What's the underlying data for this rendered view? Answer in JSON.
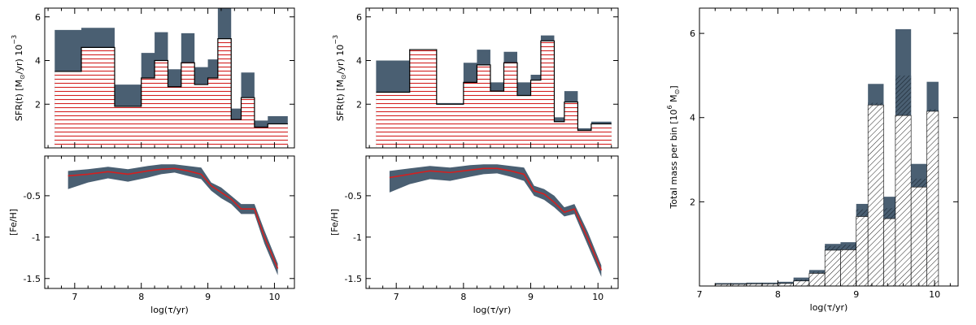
{
  "colors": {
    "envelope": "#4a5f72",
    "hatch_red": "#d42020",
    "hatch_black": "#222222",
    "line": "#000000"
  },
  "chart_data": [
    {
      "panel": "sfr-left",
      "type": "area",
      "ylabel_main": "SFR(t)",
      "ylabel_unit": "[M",
      "ylabel_sub": "⊙",
      "ylabel_tail": "/yr) 10",
      "ylabel_sup": "−3",
      "ylim": [
        0,
        6.4
      ],
      "xlim": [
        6.55,
        10.3
      ],
      "yticks": [
        "2",
        "4",
        "6"
      ],
      "ytick_values": [
        2,
        4,
        6
      ],
      "edges": [
        6.7,
        7.1,
        7.6,
        8.0,
        8.2,
        8.4,
        8.6,
        8.8,
        9.0,
        9.15,
        9.35,
        9.5,
        9.7,
        9.9,
        10.05,
        10.2
      ],
      "upper": [
        5.4,
        5.5,
        2.9,
        4.35,
        5.3,
        3.6,
        5.25,
        3.7,
        4.05,
        6.4,
        1.8,
        3.45,
        1.25,
        1.45,
        1.45
      ],
      "median": [
        3.5,
        4.6,
        1.9,
        3.2,
        4.0,
        2.8,
        3.9,
        2.9,
        3.2,
        5.0,
        1.3,
        2.3,
        0.95,
        1.1,
        1.1
      ],
      "lower": [
        0.9,
        2.2,
        1.1,
        2.0,
        3.5,
        2.6,
        3.5,
        2.6,
        2.8,
        4.5,
        0.9,
        1.8,
        0.85,
        0.9,
        0.9
      ]
    },
    {
      "panel": "feh-left",
      "type": "line",
      "ylabel": "[Fe/H]",
      "xlabel": "log(τ/yr)",
      "ylim": [
        -1.62,
        -0.02
      ],
      "xlim": [
        6.55,
        10.3
      ],
      "xticks": [
        "7",
        "8",
        "9",
        "10"
      ],
      "xtick_values": [
        7,
        8,
        9,
        10
      ],
      "yticks": [
        "-0.5",
        "-1",
        "-1.5"
      ],
      "ytick_values": [
        -0.5,
        -1,
        -1.5
      ],
      "x": [
        6.9,
        7.2,
        7.5,
        7.8,
        8.1,
        8.3,
        8.5,
        8.7,
        8.9,
        9.05,
        9.2,
        9.35,
        9.5,
        9.7,
        9.85,
        10.05
      ],
      "median": [
        -0.26,
        -0.24,
        -0.21,
        -0.24,
        -0.2,
        -0.18,
        -0.17,
        -0.2,
        -0.24,
        -0.38,
        -0.46,
        -0.54,
        -0.66,
        -0.66,
        -1.0,
        -1.38
      ],
      "upper": [
        -0.2,
        -0.18,
        -0.15,
        -0.18,
        -0.14,
        -0.12,
        -0.12,
        -0.14,
        -0.16,
        -0.34,
        -0.4,
        -0.5,
        -0.6,
        -0.6,
        -0.92,
        -1.32
      ],
      "lower": [
        -0.42,
        -0.34,
        -0.29,
        -0.33,
        -0.28,
        -0.24,
        -0.22,
        -0.26,
        -0.3,
        -0.44,
        -0.53,
        -0.6,
        -0.72,
        -0.72,
        -1.08,
        -1.46
      ]
    },
    {
      "panel": "sfr-middle",
      "type": "area",
      "ylabel_main": "SFR(t)",
      "ylabel_unit": "[M",
      "ylabel_sub": "⊙",
      "ylabel_tail": "/yr) 10",
      "ylabel_sup": "−3",
      "ylim": [
        0,
        6.4
      ],
      "xlim": [
        6.55,
        10.3
      ],
      "yticks": [
        "2",
        "4",
        "6"
      ],
      "ytick_values": [
        2,
        4,
        6
      ],
      "edges": [
        6.7,
        7.2,
        7.6,
        8.0,
        8.2,
        8.4,
        8.6,
        8.8,
        9.0,
        9.15,
        9.35,
        9.5,
        9.7,
        9.9,
        10.05,
        10.2
      ],
      "upper": [
        4.0,
        4.5,
        2.05,
        3.9,
        4.5,
        3.0,
        4.4,
        3.0,
        3.35,
        5.15,
        1.4,
        2.6,
        0.9,
        1.2,
        1.2
      ],
      "median": [
        2.55,
        4.5,
        2.0,
        3.0,
        3.8,
        2.6,
        3.9,
        2.4,
        3.1,
        4.9,
        1.2,
        2.1,
        0.8,
        1.1,
        1.1
      ],
      "lower": [
        1.45,
        2.4,
        1.3,
        2.3,
        3.45,
        2.35,
        3.5,
        2.35,
        2.85,
        4.6,
        1.05,
        1.75,
        0.75,
        1.0,
        1.0
      ]
    },
    {
      "panel": "feh-middle",
      "type": "line",
      "ylabel": "[Fe/H]",
      "xlabel": "log(τ/yr)",
      "ylim": [
        -1.62,
        -0.02
      ],
      "xlim": [
        6.55,
        10.3
      ],
      "xticks": [
        "7",
        "8",
        "9",
        "10"
      ],
      "xtick_values": [
        7,
        8,
        9,
        10
      ],
      "yticks": [
        "-0.5",
        "-1",
        "-1.5"
      ],
      "ytick_values": [
        -0.5,
        -1,
        -1.5
      ],
      "x": [
        6.9,
        7.2,
        7.5,
        7.8,
        8.1,
        8.3,
        8.5,
        8.7,
        8.9,
        9.05,
        9.2,
        9.35,
        9.5,
        9.65,
        9.85,
        10.05
      ],
      "median": [
        -0.28,
        -0.24,
        -0.2,
        -0.22,
        -0.19,
        -0.17,
        -0.17,
        -0.2,
        -0.24,
        -0.44,
        -0.48,
        -0.58,
        -0.7,
        -0.66,
        -1.02,
        -1.4
      ],
      "upper": [
        -0.2,
        -0.17,
        -0.14,
        -0.16,
        -0.13,
        -0.12,
        -0.12,
        -0.14,
        -0.16,
        -0.38,
        -0.42,
        -0.5,
        -0.64,
        -0.6,
        -0.94,
        -1.34
      ],
      "lower": [
        -0.46,
        -0.36,
        -0.3,
        -0.32,
        -0.27,
        -0.24,
        -0.23,
        -0.27,
        -0.32,
        -0.5,
        -0.55,
        -0.64,
        -0.75,
        -0.72,
        -1.1,
        -1.48
      ]
    },
    {
      "panel": "mass-right",
      "type": "bar",
      "ylabel_main": "Total mass per bin [10",
      "ylabel_sup": "6",
      "ylabel_tail": " M",
      "ylabel_sub": "⊙",
      "ylabel_end": "]",
      "xlabel": "log(τ/yr)",
      "ylim": [
        0,
        6.6
      ],
      "xlim": [
        7.0,
        10.3
      ],
      "xticks": [
        "7",
        "8",
        "9",
        "10"
      ],
      "xtick_values": [
        7,
        8,
        9,
        10
      ],
      "yticks": [
        "2",
        "4",
        "6"
      ],
      "ytick_values": [
        2,
        4,
        6
      ],
      "edges": [
        7.2,
        7.6,
        8.0,
        8.2,
        8.4,
        8.6,
        8.8,
        9.0,
        9.15,
        9.35,
        9.5,
        9.7,
        9.9,
        10.05,
        10.2
      ],
      "upper": [
        0.07,
        0.08,
        0.1,
        0.2,
        0.38,
        1.0,
        1.04,
        1.95,
        4.8,
        2.12,
        6.1,
        2.9,
        4.85,
        0,
        0
      ],
      "median": [
        0.05,
        0.06,
        0.07,
        0.15,
        0.34,
        0.95,
        0.98,
        1.82,
        4.35,
        1.85,
        5.0,
        2.55,
        4.2,
        0,
        0
      ],
      "lower": [
        0.04,
        0.05,
        0.06,
        0.12,
        0.3,
        0.85,
        0.86,
        1.65,
        4.3,
        1.6,
        4.05,
        2.35,
        4.15,
        0,
        0
      ]
    }
  ]
}
